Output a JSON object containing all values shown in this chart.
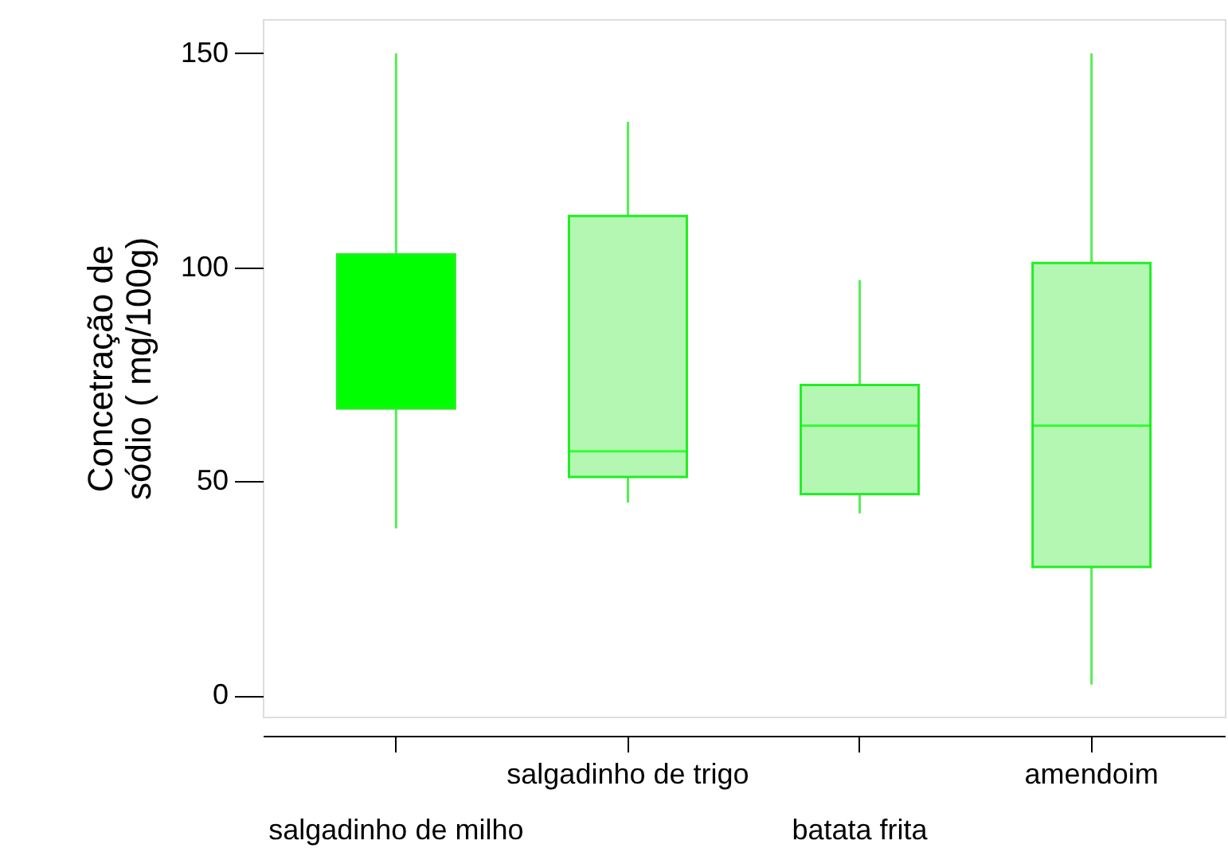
{
  "chart_data": {
    "type": "box",
    "ylabel": "Concetração de\nsódio ( mg/100g)",
    "categories": [
      "salgadinho de milho",
      "salgadinho de trigo",
      "batata frita",
      "amendoim"
    ],
    "colors": [
      "#00ff00",
      "#b3f7b3",
      "#b3f7b3",
      "#b3f7b3"
    ],
    "boxes": [
      {
        "low": 39,
        "q1": 67,
        "median": 85,
        "q3": 103,
        "high": 150
      },
      {
        "low": 45,
        "q1": 51,
        "median": 57,
        "q3": 112,
        "high": 134
      },
      {
        "low": 42.5,
        "q1": 47,
        "median": 63,
        "q3": 72.5,
        "high": 97
      },
      {
        "low": 2.5,
        "q1": 30,
        "median": 63,
        "q3": 101,
        "high": 150
      }
    ],
    "ylim": [
      -5,
      158
    ],
    "yticks": [
      0,
      50,
      100,
      150
    ],
    "grid": false
  }
}
